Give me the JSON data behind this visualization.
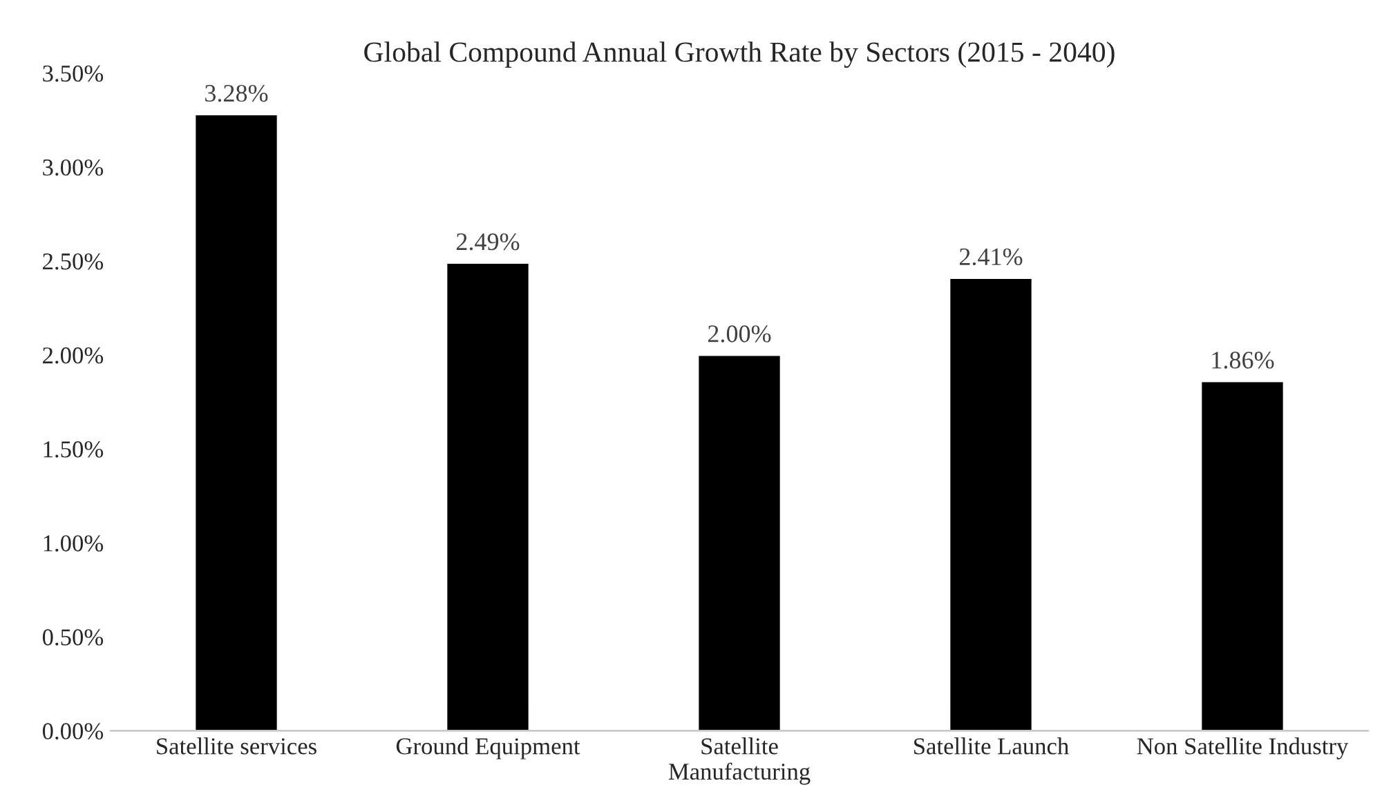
{
  "chart_data": {
    "type": "bar",
    "title": "Global Compound Annual Growth Rate by Sectors (2015 - 2040)",
    "categories": [
      "Satellite services",
      "Ground Equipment",
      "Satellite\nManufacturing",
      "Satellite Launch",
      "Non Satellite Industry"
    ],
    "values": [
      3.28,
      2.49,
      2.0,
      2.41,
      1.86
    ],
    "value_labels": [
      "3.28%",
      "2.49%",
      "2.00%",
      "2.41%",
      "1.86%"
    ],
    "color": "#000000",
    "ylim": [
      0,
      3.5
    ],
    "yticks": [
      {
        "value": 0,
        "label": "0.00%"
      },
      {
        "value": 0.5,
        "label": "0.50%"
      },
      {
        "value": 1,
        "label": "1.00%"
      },
      {
        "value": 1.5,
        "label": "1.50%"
      },
      {
        "value": 2,
        "label": "2.00%"
      },
      {
        "value": 2.5,
        "label": "2.50%"
      },
      {
        "value": 3,
        "label": "3.00%"
      },
      {
        "value": 3.5,
        "label": "3.50%"
      }
    ],
    "grid": false,
    "legend": false
  }
}
